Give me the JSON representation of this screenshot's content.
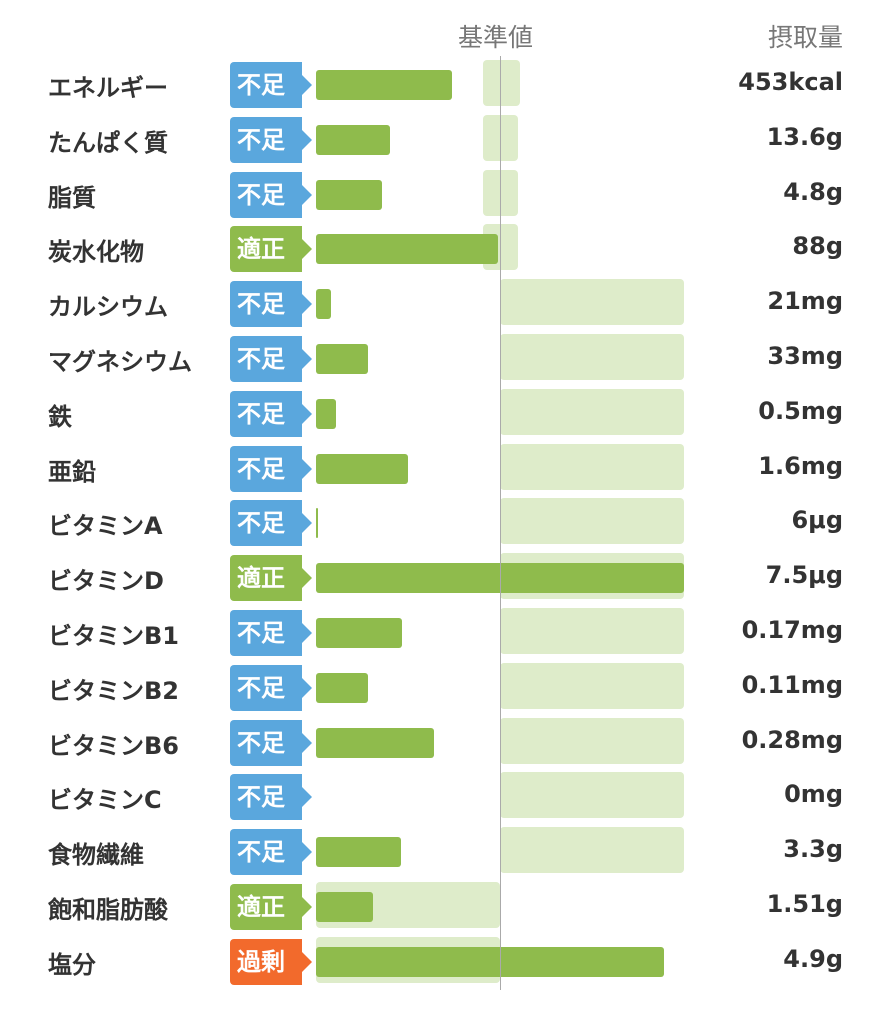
{
  "header": {
    "reference_label": "基準値",
    "amount_label": "摂取量"
  },
  "colors": {
    "不足": "#5aa7dd",
    "適正": "#8fbb4c",
    "過剰": "#f26a2c",
    "bar": "#8fbb4c",
    "range": "#deecca"
  },
  "chart_data": {
    "type": "bar",
    "orientation": "horizontal",
    "reference_label": "基準値",
    "amount_label": "摂取量",
    "rows": [
      {
        "name": "エネルギー",
        "status": "不足",
        "amount": "453kcal",
        "percent_of_reference": 74,
        "range_percent": [
          91,
          111
        ]
      },
      {
        "name": "たんぱく質",
        "status": "不足",
        "amount": "13.6g",
        "percent_of_reference": 40,
        "range_percent": [
          91,
          110
        ]
      },
      {
        "name": "脂質",
        "status": "不足",
        "amount": "4.8g",
        "percent_of_reference": 36,
        "range_percent": [
          91,
          110
        ]
      },
      {
        "name": "炭水化物",
        "status": "適正",
        "amount": "88g",
        "percent_of_reference": 99,
        "range_percent": [
          91,
          110
        ]
      },
      {
        "name": "カルシウム",
        "status": "不足",
        "amount": "21mg",
        "percent_of_reference": 8,
        "range_percent": [
          100,
          200
        ]
      },
      {
        "name": "マグネシウム",
        "status": "不足",
        "amount": "33mg",
        "percent_of_reference": 28,
        "range_percent": [
          100,
          200
        ]
      },
      {
        "name": "鉄",
        "status": "不足",
        "amount": "0.5mg",
        "percent_of_reference": 11,
        "range_percent": [
          100,
          200
        ]
      },
      {
        "name": "亜鉛",
        "status": "不足",
        "amount": "1.6mg",
        "percent_of_reference": 50,
        "range_percent": [
          100,
          200
        ]
      },
      {
        "name": "ビタミンA",
        "status": "不足",
        "amount": "6μg",
        "percent_of_reference": 1,
        "range_percent": [
          100,
          200
        ]
      },
      {
        "name": "ビタミンD",
        "status": "適正",
        "amount": "7.5μg",
        "percent_of_reference": 200,
        "range_percent": [
          100,
          200
        ]
      },
      {
        "name": "ビタミンB1",
        "status": "不足",
        "amount": "0.17mg",
        "percent_of_reference": 47,
        "range_percent": [
          100,
          200
        ]
      },
      {
        "name": "ビタミンB2",
        "status": "不足",
        "amount": "0.11mg",
        "percent_of_reference": 28,
        "range_percent": [
          100,
          200
        ]
      },
      {
        "name": "ビタミンB6",
        "status": "不足",
        "amount": "0.28mg",
        "percent_of_reference": 64,
        "range_percent": [
          100,
          200
        ]
      },
      {
        "name": "ビタミンC",
        "status": "不足",
        "amount": "0mg",
        "percent_of_reference": 0,
        "range_percent": [
          100,
          200
        ]
      },
      {
        "name": "食物繊維",
        "status": "不足",
        "amount": "3.3g",
        "percent_of_reference": 46,
        "range_percent": [
          100,
          200
        ]
      },
      {
        "name": "飽和脂肪酸",
        "status": "適正",
        "amount": "1.51g",
        "percent_of_reference": 31,
        "range_percent": [
          0,
          100
        ]
      },
      {
        "name": "塩分",
        "status": "過剰",
        "amount": "4.9g",
        "percent_of_reference": 189,
        "range_percent": [
          0,
          100
        ]
      }
    ]
  }
}
